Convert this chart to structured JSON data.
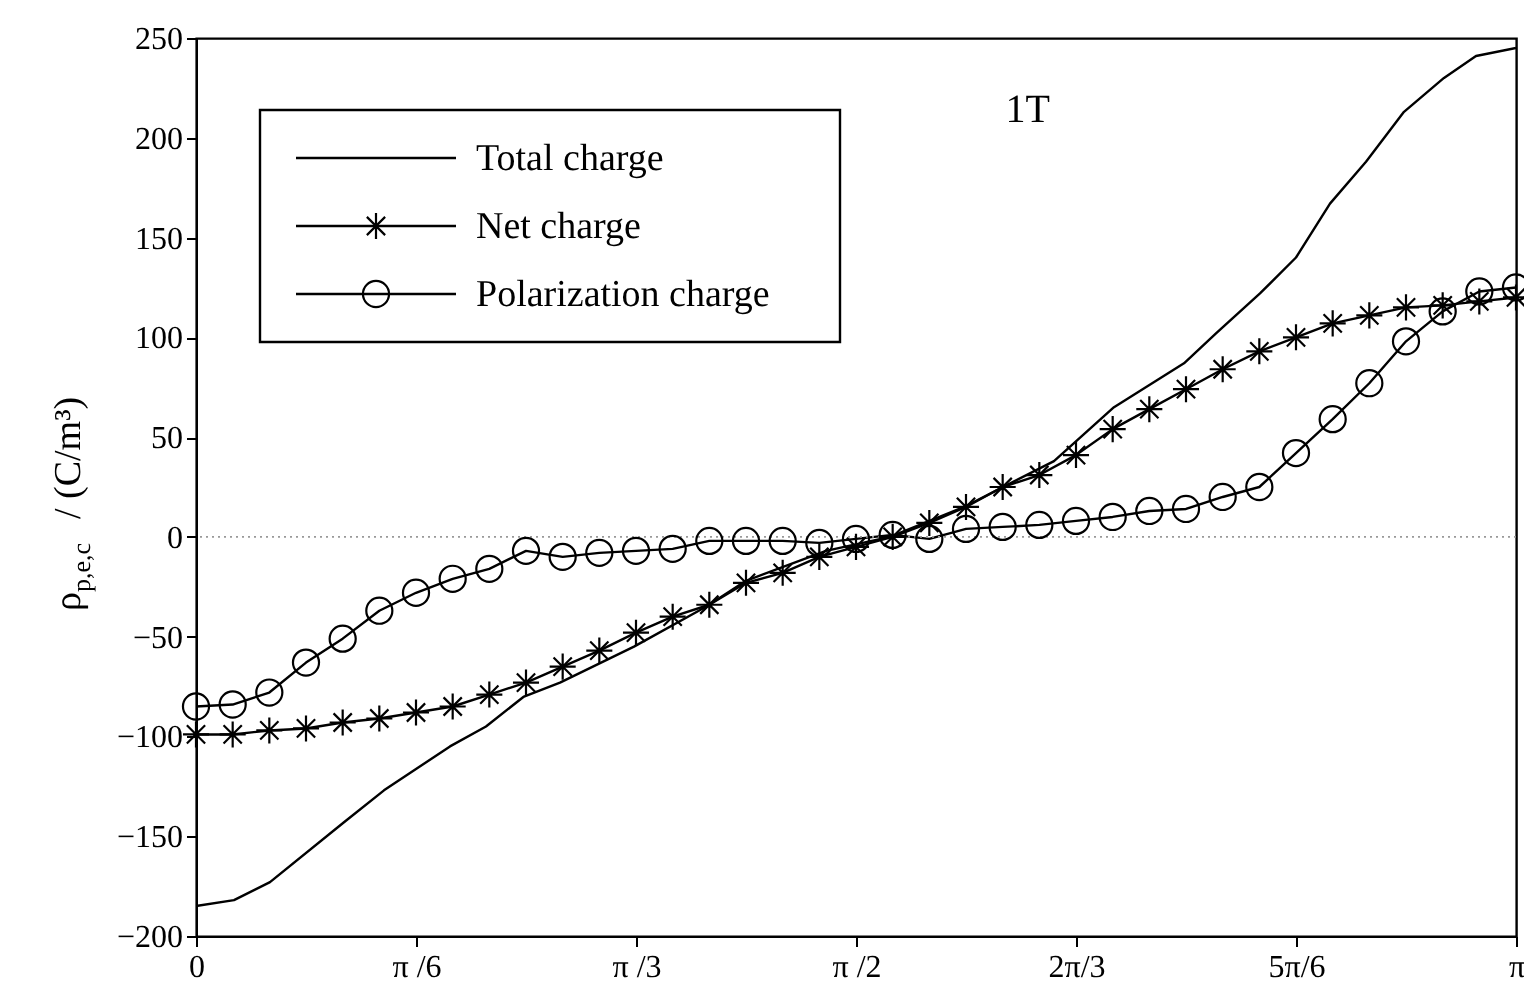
{
  "chart_data": {
    "type": "line",
    "ylabel": "ρ$_{p,e,c}$ / (C/m³)",
    "annotations": [
      "1T"
    ],
    "x": [
      0,
      0.0873,
      0.1745,
      0.2618,
      0.3491,
      0.4363,
      0.5236,
      0.6109,
      0.6981,
      0.7854,
      0.8727,
      0.9599,
      1.0472,
      1.1345,
      1.2217,
      1.309,
      1.3963,
      1.4835,
      1.5708,
      1.6581,
      1.7453,
      1.8326,
      1.9199,
      2.0071,
      2.0944,
      2.1817,
      2.2689,
      2.3562,
      2.4435,
      2.5307,
      2.618,
      2.7053,
      2.7925,
      2.8798,
      2.9671,
      3.0543,
      3.1416
    ],
    "series": [
      {
        "name": "Total charge",
        "color": "#000000",
        "marker": "none",
        "x": [
          0,
          0.0904,
          0.1761,
          0.3522,
          0.4474,
          0.6045,
          0.6902,
          0.7806,
          0.8663,
          1.0424,
          1.2138,
          1.309,
          1.4994,
          1.6517,
          1.8278,
          2.042,
          2.1848,
          2.3514,
          2.4276,
          2.5323,
          2.618,
          2.6989,
          2.7846,
          2.875,
          2.9702,
          3.0464,
          3.1416
        ],
        "values": [
          -185,
          -182,
          -173,
          -143,
          -127,
          -105,
          -95,
          -80,
          -73,
          -55,
          -35,
          -22,
          -7,
          0,
          15,
          38,
          65,
          87,
          102,
          122,
          140,
          167,
          188,
          213,
          230,
          241,
          245
        ]
      },
      {
        "name": "Net charge",
        "color": "#000000",
        "marker": "cross",
        "values": [
          -99,
          -99,
          -97,
          -96,
          -93,
          -91,
          -88,
          -85,
          -79,
          -73,
          -65,
          -57,
          -48,
          -40,
          -34,
          -23,
          -18,
          -10,
          -5,
          0,
          7,
          15,
          25,
          31,
          41,
          54,
          64,
          74,
          84,
          93,
          100,
          107,
          111,
          115,
          116,
          118,
          120
        ]
      },
      {
        "name": "Polarization charge",
        "color": "#000000",
        "marker": "circle",
        "values": [
          -85,
          -84,
          -78,
          -63,
          -51,
          -37,
          -28,
          -21,
          -16,
          -7,
          -10,
          -8,
          -7,
          -6,
          -2,
          -2,
          -2,
          -3,
          -1,
          1,
          -1,
          4,
          5,
          6,
          8,
          10,
          13,
          14,
          20,
          25,
          42,
          59,
          77,
          98,
          113,
          123,
          125
        ]
      }
    ],
    "xlim": [
      0,
      3.1416
    ],
    "xticks": [
      0,
      {
        "value": 0.5236,
        "label": "π /6"
      },
      {
        "value": 1.0472,
        "label": "π /3"
      },
      {
        "value": 1.5708,
        "label": "π /2"
      },
      {
        "value": 2.0944,
        "label": "2π/3"
      },
      {
        "value": 2.618,
        "label": "5π/6"
      },
      {
        "value": 3.1416,
        "label": "π"
      }
    ],
    "ylim": [
      -200,
      250
    ],
    "yticks": [
      -200,
      -150,
      -100,
      -50,
      0,
      50,
      100,
      150,
      200,
      250
    ],
    "ref_lines": [
      {
        "axis": "y",
        "value": 0,
        "color": "#999999",
        "line_style": "dotted"
      }
    ],
    "grid": false,
    "legend": "top left"
  }
}
